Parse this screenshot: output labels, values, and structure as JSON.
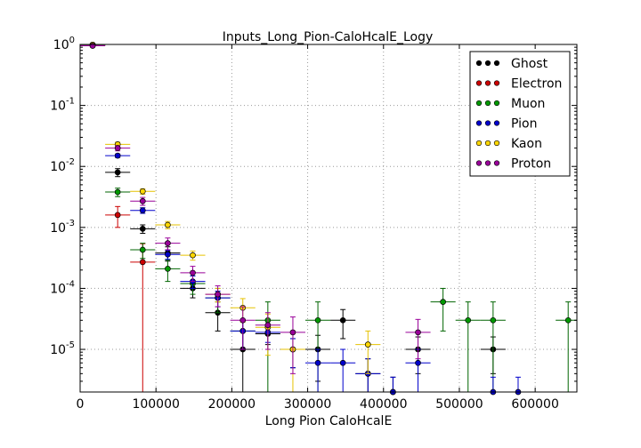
{
  "chart_data": {
    "type": "scatter",
    "title": "Inputs_Long_Pion-CaloHcalE_Logy",
    "xlabel": "Long Pion CaloHcalE",
    "ylabel": "",
    "xlim": [
      0,
      655000
    ],
    "ylim": [
      2e-06,
      1
    ],
    "yscale": "log",
    "grid": true,
    "legend_position": "top-right",
    "x_ticks": [
      {
        "value": 0,
        "label": "0"
      },
      {
        "value": 100000,
        "label": "100000"
      },
      {
        "value": 200000,
        "label": "200000"
      },
      {
        "value": 300000,
        "label": "300000"
      },
      {
        "value": 400000,
        "label": "400000"
      },
      {
        "value": 500000,
        "label": "500000"
      },
      {
        "value": 600000,
        "label": "600000"
      }
    ],
    "y_ticks": [
      {
        "value": 1e-05,
        "base": "10",
        "exp": "-5"
      },
      {
        "value": 0.0001,
        "base": "10",
        "exp": "-4"
      },
      {
        "value": 0.001,
        "base": "10",
        "exp": "-3"
      },
      {
        "value": 0.01,
        "base": "10",
        "exp": "-2"
      },
      {
        "value": 0.1,
        "base": "10",
        "exp": "-1"
      },
      {
        "value": 1,
        "base": "10",
        "exp": "0"
      }
    ],
    "bin_half_width": 16500,
    "series": [
      {
        "name": "Ghost",
        "color": "#000000",
        "fill": "#000000",
        "offset": 0,
        "points": [
          [
            16500,
            0.99,
            0
          ],
          [
            49500,
            0.008,
            0.0012
          ],
          [
            82500,
            0.00095,
            0.00015
          ],
          [
            115500,
            0.00038,
            0.0001
          ],
          [
            148500,
            0.0001,
            3e-05
          ],
          [
            181500,
            4e-05,
            2e-05
          ],
          [
            214500,
            1e-05,
            1e-05
          ],
          [
            247500,
            1.8e-05,
            6e-06
          ],
          [
            280500,
            1e-05,
            5e-06
          ],
          [
            313500,
            1e-05,
            7e-06
          ],
          [
            346500,
            3e-05,
            1.5e-05
          ],
          [
            379500,
            4e-06,
            3e-06
          ],
          [
            412500,
            2e-06,
            1.5e-06
          ],
          [
            445500,
            1e-05,
            6e-06
          ],
          [
            544500,
            1e-05,
            6e-06
          ]
        ]
      },
      {
        "name": "Electron",
        "color": "#cc0000",
        "fill": "#cc0000",
        "offset": 0,
        "points": [
          [
            16500,
            0.96,
            0
          ],
          [
            49500,
            0.0016,
            0.0006
          ],
          [
            82500,
            0.00027,
            0.00027
          ]
        ]
      },
      {
        "name": "Muon",
        "color": "#006400",
        "fill": "#009900",
        "offset": 0,
        "points": [
          [
            16500,
            0.97,
            0
          ],
          [
            49500,
            0.0038,
            0.0006
          ],
          [
            82500,
            0.00043,
            0.00012
          ],
          [
            115500,
            0.00021,
            8e-05
          ],
          [
            148500,
            0.00012,
            4e-05
          ],
          [
            181500,
            7e-05,
            3e-05
          ],
          [
            214500,
            2e-05,
            1e-05
          ],
          [
            247500,
            3e-05,
            3e-05
          ],
          [
            313500,
            3e-05,
            3e-05
          ],
          [
            478500,
            6e-05,
            4e-05
          ],
          [
            511500,
            3e-05,
            3e-05
          ],
          [
            544500,
            3e-05,
            3e-05
          ],
          [
            643500,
            3e-05,
            3e-05
          ]
        ]
      },
      {
        "name": "Pion",
        "color": "#0000cc",
        "fill": "#0000cc",
        "offset": 0,
        "points": [
          [
            16500,
            0.98,
            0
          ],
          [
            49500,
            0.015,
            0.001
          ],
          [
            82500,
            0.0019,
            0.0002
          ],
          [
            115500,
            0.00036,
            6e-05
          ],
          [
            148500,
            0.00013,
            3e-05
          ],
          [
            181500,
            7e-05,
            2e-05
          ],
          [
            214500,
            2e-05,
            1e-05
          ],
          [
            247500,
            1.9e-05,
            6e-06
          ],
          [
            280500,
            1e-05,
            5e-06
          ],
          [
            313500,
            6e-06,
            4e-06
          ],
          [
            346500,
            6e-06,
            4e-06
          ],
          [
            379500,
            4e-06,
            3e-06
          ],
          [
            412500,
            2e-06,
            1.5e-06
          ],
          [
            445500,
            6e-06,
            4e-06
          ],
          [
            544500,
            2e-06,
            1.5e-06
          ],
          [
            577500,
            2e-06,
            1.5e-06
          ]
        ]
      },
      {
        "name": "Kaon",
        "color": "#e6c200",
        "fill": "#ffd700",
        "offset": 0,
        "points": [
          [
            16500,
            0.99,
            0
          ],
          [
            49500,
            0.023,
            0.002
          ],
          [
            82500,
            0.0039,
            0.0004
          ],
          [
            115500,
            0.0011,
            0.00015
          ],
          [
            148500,
            0.00035,
            6e-05
          ],
          [
            181500,
            8e-05,
            2e-05
          ],
          [
            214500,
            4.8e-05,
            2e-05
          ],
          [
            247500,
            2.3e-05,
            1.5e-05
          ],
          [
            280500,
            1e-05,
            8e-06
          ],
          [
            379500,
            1.2e-05,
            8e-06
          ]
        ]
      },
      {
        "name": "Proton",
        "color": "#990099",
        "fill": "#990099",
        "offset": 0,
        "points": [
          [
            16500,
            0.95,
            0
          ],
          [
            49500,
            0.02,
            0.002
          ],
          [
            82500,
            0.0027,
            0.0004
          ],
          [
            115500,
            0.00055,
            0.00012
          ],
          [
            148500,
            0.00018,
            5e-05
          ],
          [
            181500,
            8e-05,
            3e-05
          ],
          [
            214500,
            3e-05,
            2e-05
          ],
          [
            247500,
            2.5e-05,
            1.5e-05
          ],
          [
            280500,
            1.9e-05,
            1.5e-05
          ],
          [
            445500,
            1.9e-05,
            1.2e-05
          ]
        ]
      }
    ]
  }
}
